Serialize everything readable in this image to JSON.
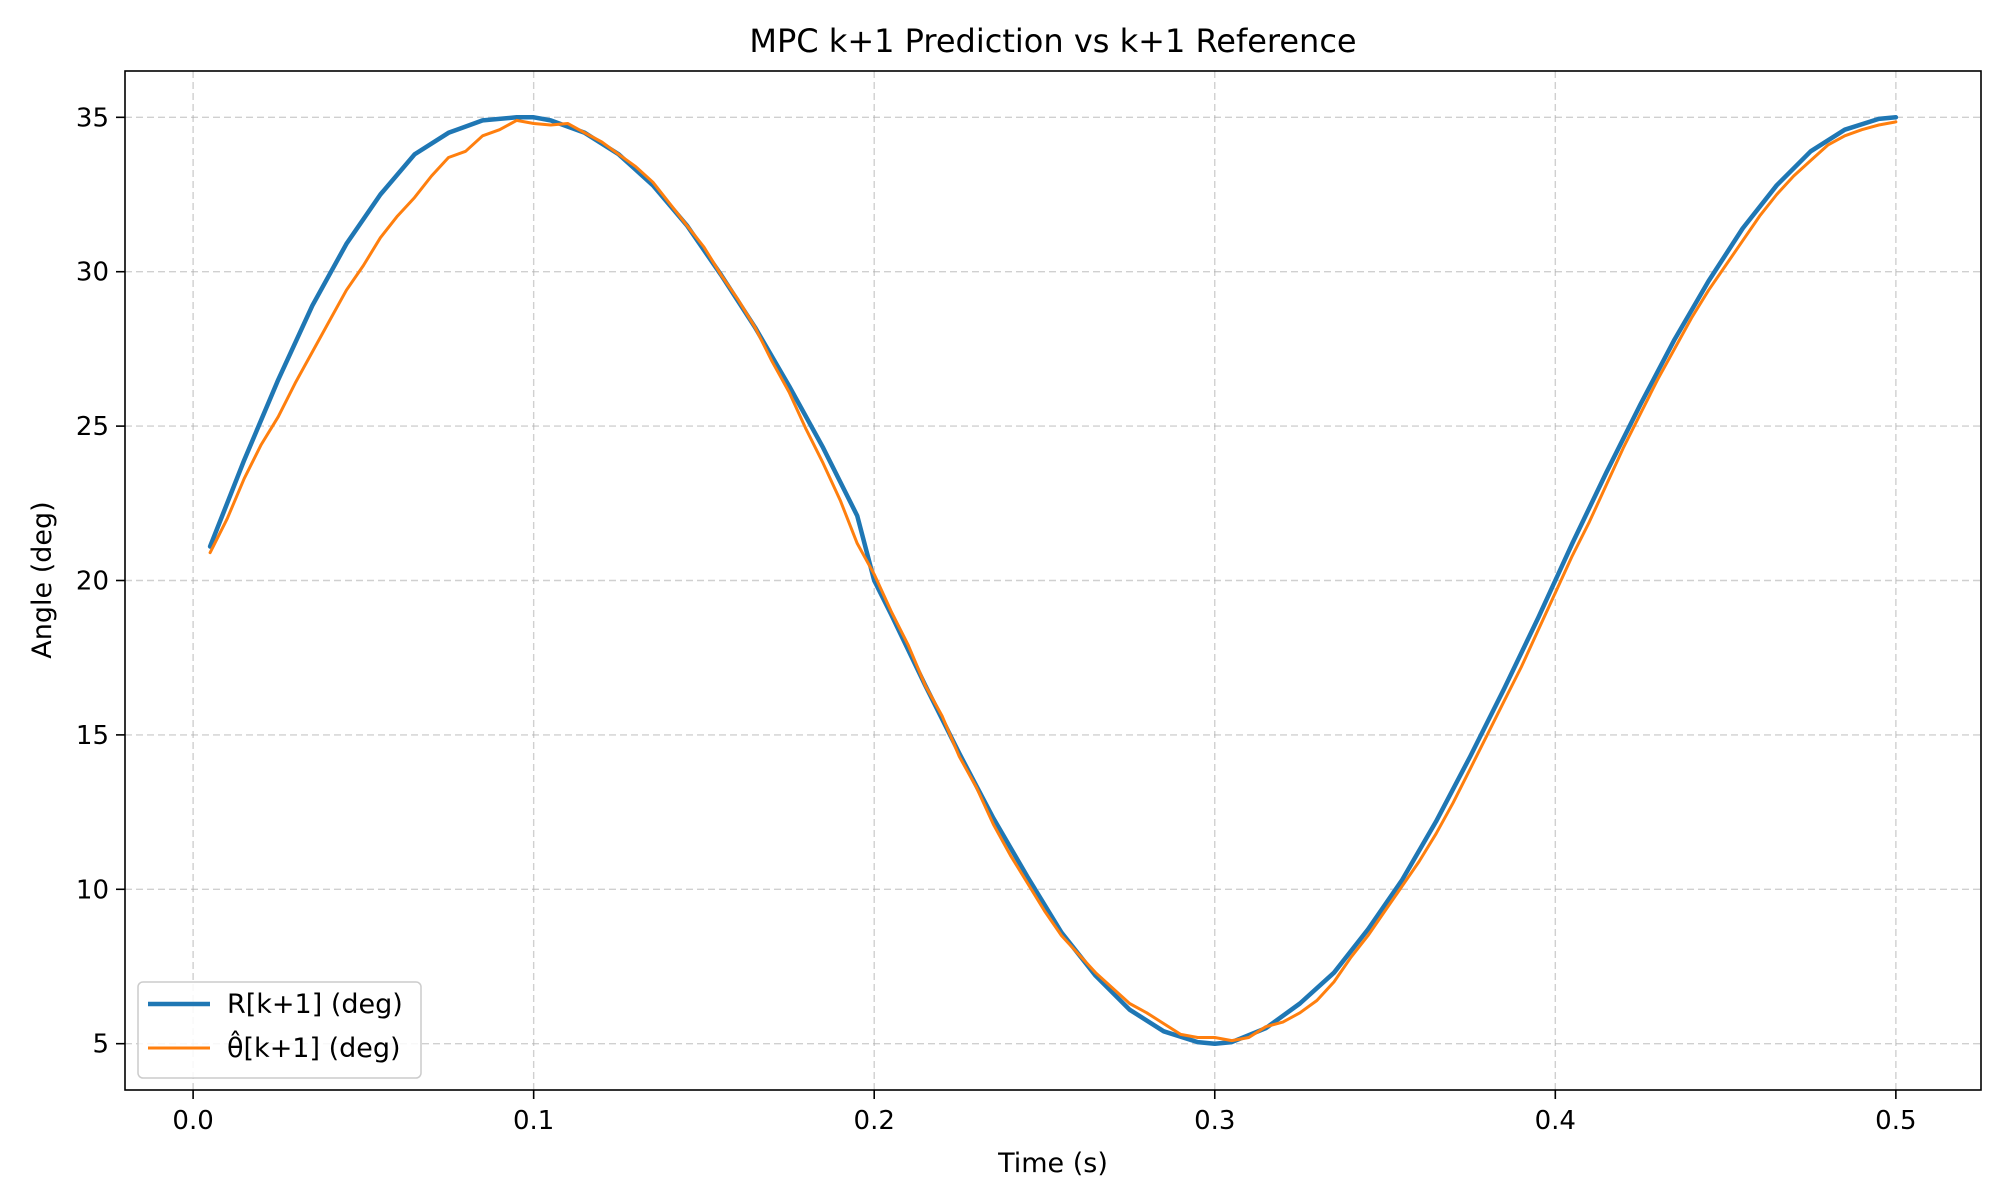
{
  "chart_data": {
    "type": "line",
    "title": "MPC k+1 Prediction vs k+1 Reference",
    "xlabel": "Time (s)",
    "ylabel": "Angle (deg)",
    "xlim": [
      -0.02,
      0.525
    ],
    "ylim": [
      3.5,
      36.5
    ],
    "xticks": [
      0.0,
      0.1,
      0.2,
      0.3,
      0.4,
      0.5
    ],
    "xtick_labels": [
      "0.0",
      "0.1",
      "0.2",
      "0.3",
      "0.4",
      "0.5"
    ],
    "yticks": [
      5,
      10,
      15,
      20,
      25,
      30,
      35
    ],
    "ytick_labels": [
      "5",
      "10",
      "15",
      "20",
      "25",
      "30",
      "35"
    ],
    "grid": true,
    "legend_position": "lower-left",
    "series": [
      {
        "name": "R[k+1] (deg)",
        "color": "#1f77b4",
        "x": [
          0.005,
          0.015,
          0.025,
          0.035,
          0.045,
          0.055,
          0.065,
          0.075,
          0.085,
          0.095,
          0.1,
          0.105,
          0.115,
          0.125,
          0.135,
          0.145,
          0.155,
          0.165,
          0.175,
          0.185,
          0.195,
          0.2,
          0.205,
          0.215,
          0.225,
          0.235,
          0.245,
          0.255,
          0.265,
          0.275,
          0.285,
          0.295,
          0.3,
          0.305,
          0.315,
          0.325,
          0.335,
          0.345,
          0.355,
          0.365,
          0.375,
          0.385,
          0.395,
          0.4,
          0.405,
          0.415,
          0.425,
          0.435,
          0.445,
          0.455,
          0.465,
          0.475,
          0.485,
          0.495,
          0.5
        ],
        "y": [
          21.1,
          23.9,
          26.5,
          28.9,
          30.9,
          32.5,
          33.8,
          34.5,
          34.9,
          35.0,
          35.0,
          34.9,
          34.5,
          33.8,
          32.8,
          31.5,
          29.9,
          28.2,
          26.3,
          24.3,
          22.1,
          20.0,
          18.9,
          16.6,
          14.4,
          12.3,
          10.4,
          8.6,
          7.2,
          6.1,
          5.4,
          5.05,
          5.0,
          5.05,
          5.5,
          6.3,
          7.3,
          8.7,
          10.3,
          12.2,
          14.3,
          16.5,
          18.8,
          20.0,
          21.2,
          23.5,
          25.7,
          27.8,
          29.7,
          31.4,
          32.8,
          33.9,
          34.6,
          34.95,
          35.0
        ]
      },
      {
        "name": "θ̂[k+1] (deg)",
        "color": "#ff7f0e",
        "x": [
          0.005,
          0.01,
          0.015,
          0.02,
          0.025,
          0.03,
          0.035,
          0.04,
          0.045,
          0.05,
          0.055,
          0.06,
          0.065,
          0.07,
          0.075,
          0.08,
          0.085,
          0.09,
          0.095,
          0.1,
          0.105,
          0.11,
          0.115,
          0.12,
          0.125,
          0.13,
          0.135,
          0.14,
          0.145,
          0.15,
          0.155,
          0.16,
          0.165,
          0.17,
          0.175,
          0.18,
          0.185,
          0.19,
          0.195,
          0.2,
          0.205,
          0.21,
          0.215,
          0.22,
          0.225,
          0.23,
          0.235,
          0.24,
          0.245,
          0.25,
          0.255,
          0.26,
          0.265,
          0.27,
          0.275,
          0.28,
          0.285,
          0.29,
          0.295,
          0.3,
          0.305,
          0.31,
          0.315,
          0.32,
          0.325,
          0.33,
          0.335,
          0.34,
          0.345,
          0.35,
          0.355,
          0.36,
          0.365,
          0.37,
          0.375,
          0.38,
          0.385,
          0.39,
          0.395,
          0.4,
          0.405,
          0.41,
          0.415,
          0.42,
          0.425,
          0.43,
          0.435,
          0.44,
          0.445,
          0.45,
          0.455,
          0.46,
          0.465,
          0.47,
          0.475,
          0.48,
          0.485,
          0.49,
          0.495,
          0.5
        ],
        "y": [
          20.9,
          22.0,
          23.3,
          24.4,
          25.3,
          26.4,
          27.4,
          28.4,
          29.4,
          30.2,
          31.1,
          31.8,
          32.4,
          33.1,
          33.7,
          33.9,
          34.4,
          34.6,
          34.9,
          34.8,
          34.75,
          34.8,
          34.5,
          34.2,
          33.8,
          33.4,
          32.9,
          32.2,
          31.5,
          30.8,
          29.9,
          29.1,
          28.2,
          27.1,
          26.1,
          24.9,
          23.8,
          22.6,
          21.2,
          20.2,
          19.0,
          17.9,
          16.6,
          15.6,
          14.3,
          13.3,
          12.1,
          11.1,
          10.2,
          9.3,
          8.5,
          7.9,
          7.3,
          6.8,
          6.3,
          6.0,
          5.65,
          5.3,
          5.2,
          5.2,
          5.1,
          5.2,
          5.55,
          5.7,
          6.0,
          6.4,
          7.0,
          7.8,
          8.5,
          9.3,
          10.1,
          10.9,
          11.8,
          12.8,
          13.9,
          15.0,
          16.1,
          17.2,
          18.4,
          19.6,
          20.8,
          21.9,
          23.1,
          24.3,
          25.4,
          26.5,
          27.5,
          28.5,
          29.4,
          30.2,
          31.0,
          31.8,
          32.5,
          33.1,
          33.6,
          34.1,
          34.4,
          34.6,
          34.75,
          34.85
        ]
      }
    ]
  }
}
